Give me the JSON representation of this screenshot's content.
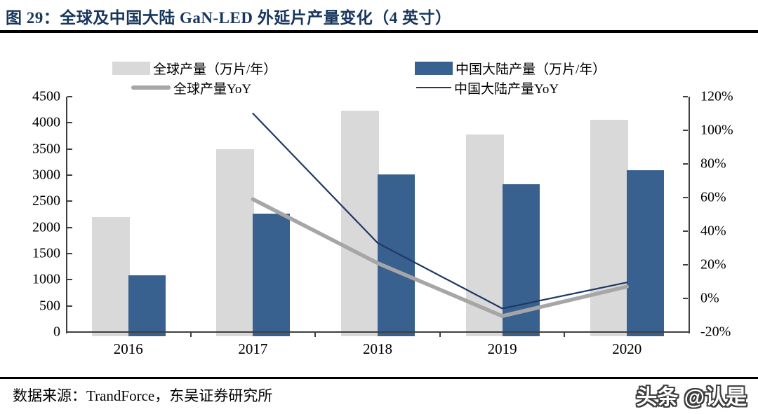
{
  "header": {
    "title": "图 29：全球及中国大陆 GaN-LED 外延片产量变化（4 英寸）",
    "title_color": "#17365D"
  },
  "legend": {
    "items": [
      {
        "label": "全球产量（万片/年）",
        "swatch": "box",
        "color": "#D9D9D9"
      },
      {
        "label": "中国大陆产量（万片/年）",
        "swatch": "box",
        "color": "#38618F"
      },
      {
        "label": "全球产量YoY",
        "swatch": "thick-line",
        "color": "#A6A6A6"
      },
      {
        "label": "中国大陆产量YoY",
        "swatch": "thin-line",
        "color": "#1F3864"
      }
    ]
  },
  "chart_data": {
    "type": "bar",
    "subtype": "grouped bars with YoY lines on secondary axis",
    "categories": [
      "2016",
      "2017",
      "2018",
      "2019",
      "2020"
    ],
    "series": [
      {
        "name": "全球产量（万片/年）",
        "type": "bar",
        "axis": "left",
        "color": "#D9D9D9",
        "values": [
          2200,
          3500,
          4230,
          3780,
          4060
        ]
      },
      {
        "name": "中国大陆产量（万片/年）",
        "type": "bar",
        "axis": "left",
        "color": "#38618F",
        "values": [
          1080,
          2270,
          3010,
          2830,
          3100
        ]
      },
      {
        "name": "全球产量YoY",
        "type": "line",
        "axis": "right",
        "color": "#A6A6A6",
        "line_weight": "thick",
        "unit": "%",
        "values": [
          null,
          59,
          21,
          -10.5,
          7
        ]
      },
      {
        "name": "中国大陆产量YoY",
        "type": "line",
        "axis": "right",
        "color": "#1F3864",
        "line_weight": "thin",
        "unit": "%",
        "values": [
          null,
          110,
          33,
          -6,
          9.5
        ]
      }
    ],
    "left_axis": {
      "min": 0,
      "max": 4500,
      "step": 500,
      "ticks": [
        "4500",
        "4000",
        "3500",
        "3000",
        "2500",
        "2000",
        "1500",
        "1000",
        "500",
        "0"
      ]
    },
    "right_axis": {
      "min": -20,
      "max": 120,
      "step": 20,
      "ticks": [
        "120%",
        "100%",
        "80%",
        "60%",
        "40%",
        "20%",
        "0%",
        "-20%"
      ]
    },
    "grid": false,
    "legend_position": "top"
  },
  "footer": {
    "source": "数据来源：TrandForce，东吴证券研究所",
    "watermark": "头条 @认是"
  }
}
